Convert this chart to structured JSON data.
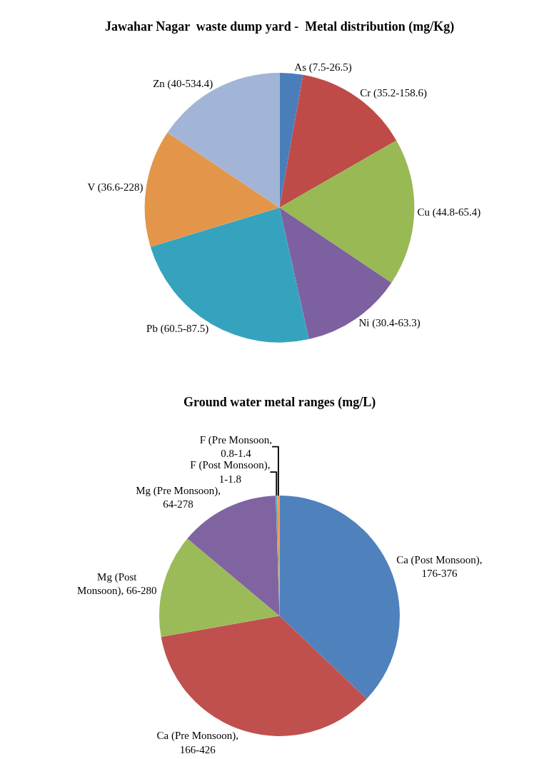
{
  "chart_data": [
    {
      "type": "pie",
      "title": "Jawahar Nagar  waste dump yard -  Metal distribution (mg/Kg)",
      "categories": [
        "As (7.5-26.5)",
        "Cr (35.2-158.6)",
        "Cu (44.8-65.4)",
        "Ni (30.4-63.3)",
        "Pb (60.5-87.5)",
        "V (36.6-228)",
        "Zn (40-534.4)"
      ],
      "values": [
        2.8,
        13.9,
        17.7,
        12.1,
        23.8,
        14.1,
        15.6
      ],
      "colors": [
        "#4a7ebb",
        "#be4b48",
        "#98b954",
        "#7d60a0",
        "#35a3be",
        "#e3964a",
        "#a2b5d6"
      ]
    },
    {
      "type": "pie",
      "title": "Ground water metal ranges (mg/L)",
      "categories": [
        "Ca (Post Monsoon),\n176-376",
        "Ca (Pre Monsoon),\n166-426",
        "Mg (Post\nMonsoon), 66-280",
        "Mg (Pre Monsoon),\n64-278",
        "F (Post Monsoon),\n1-1.8",
        "F (Pre Monsoon,\n0.8-1.4"
      ],
      "values": [
        37.1,
        35.1,
        13.9,
        13.4,
        0.2,
        0.3
      ],
      "colors": [
        "#4f81bd",
        "#c0504d",
        "#9bbb59",
        "#8064a2",
        "#4bacc6",
        "#f79646"
      ]
    }
  ]
}
